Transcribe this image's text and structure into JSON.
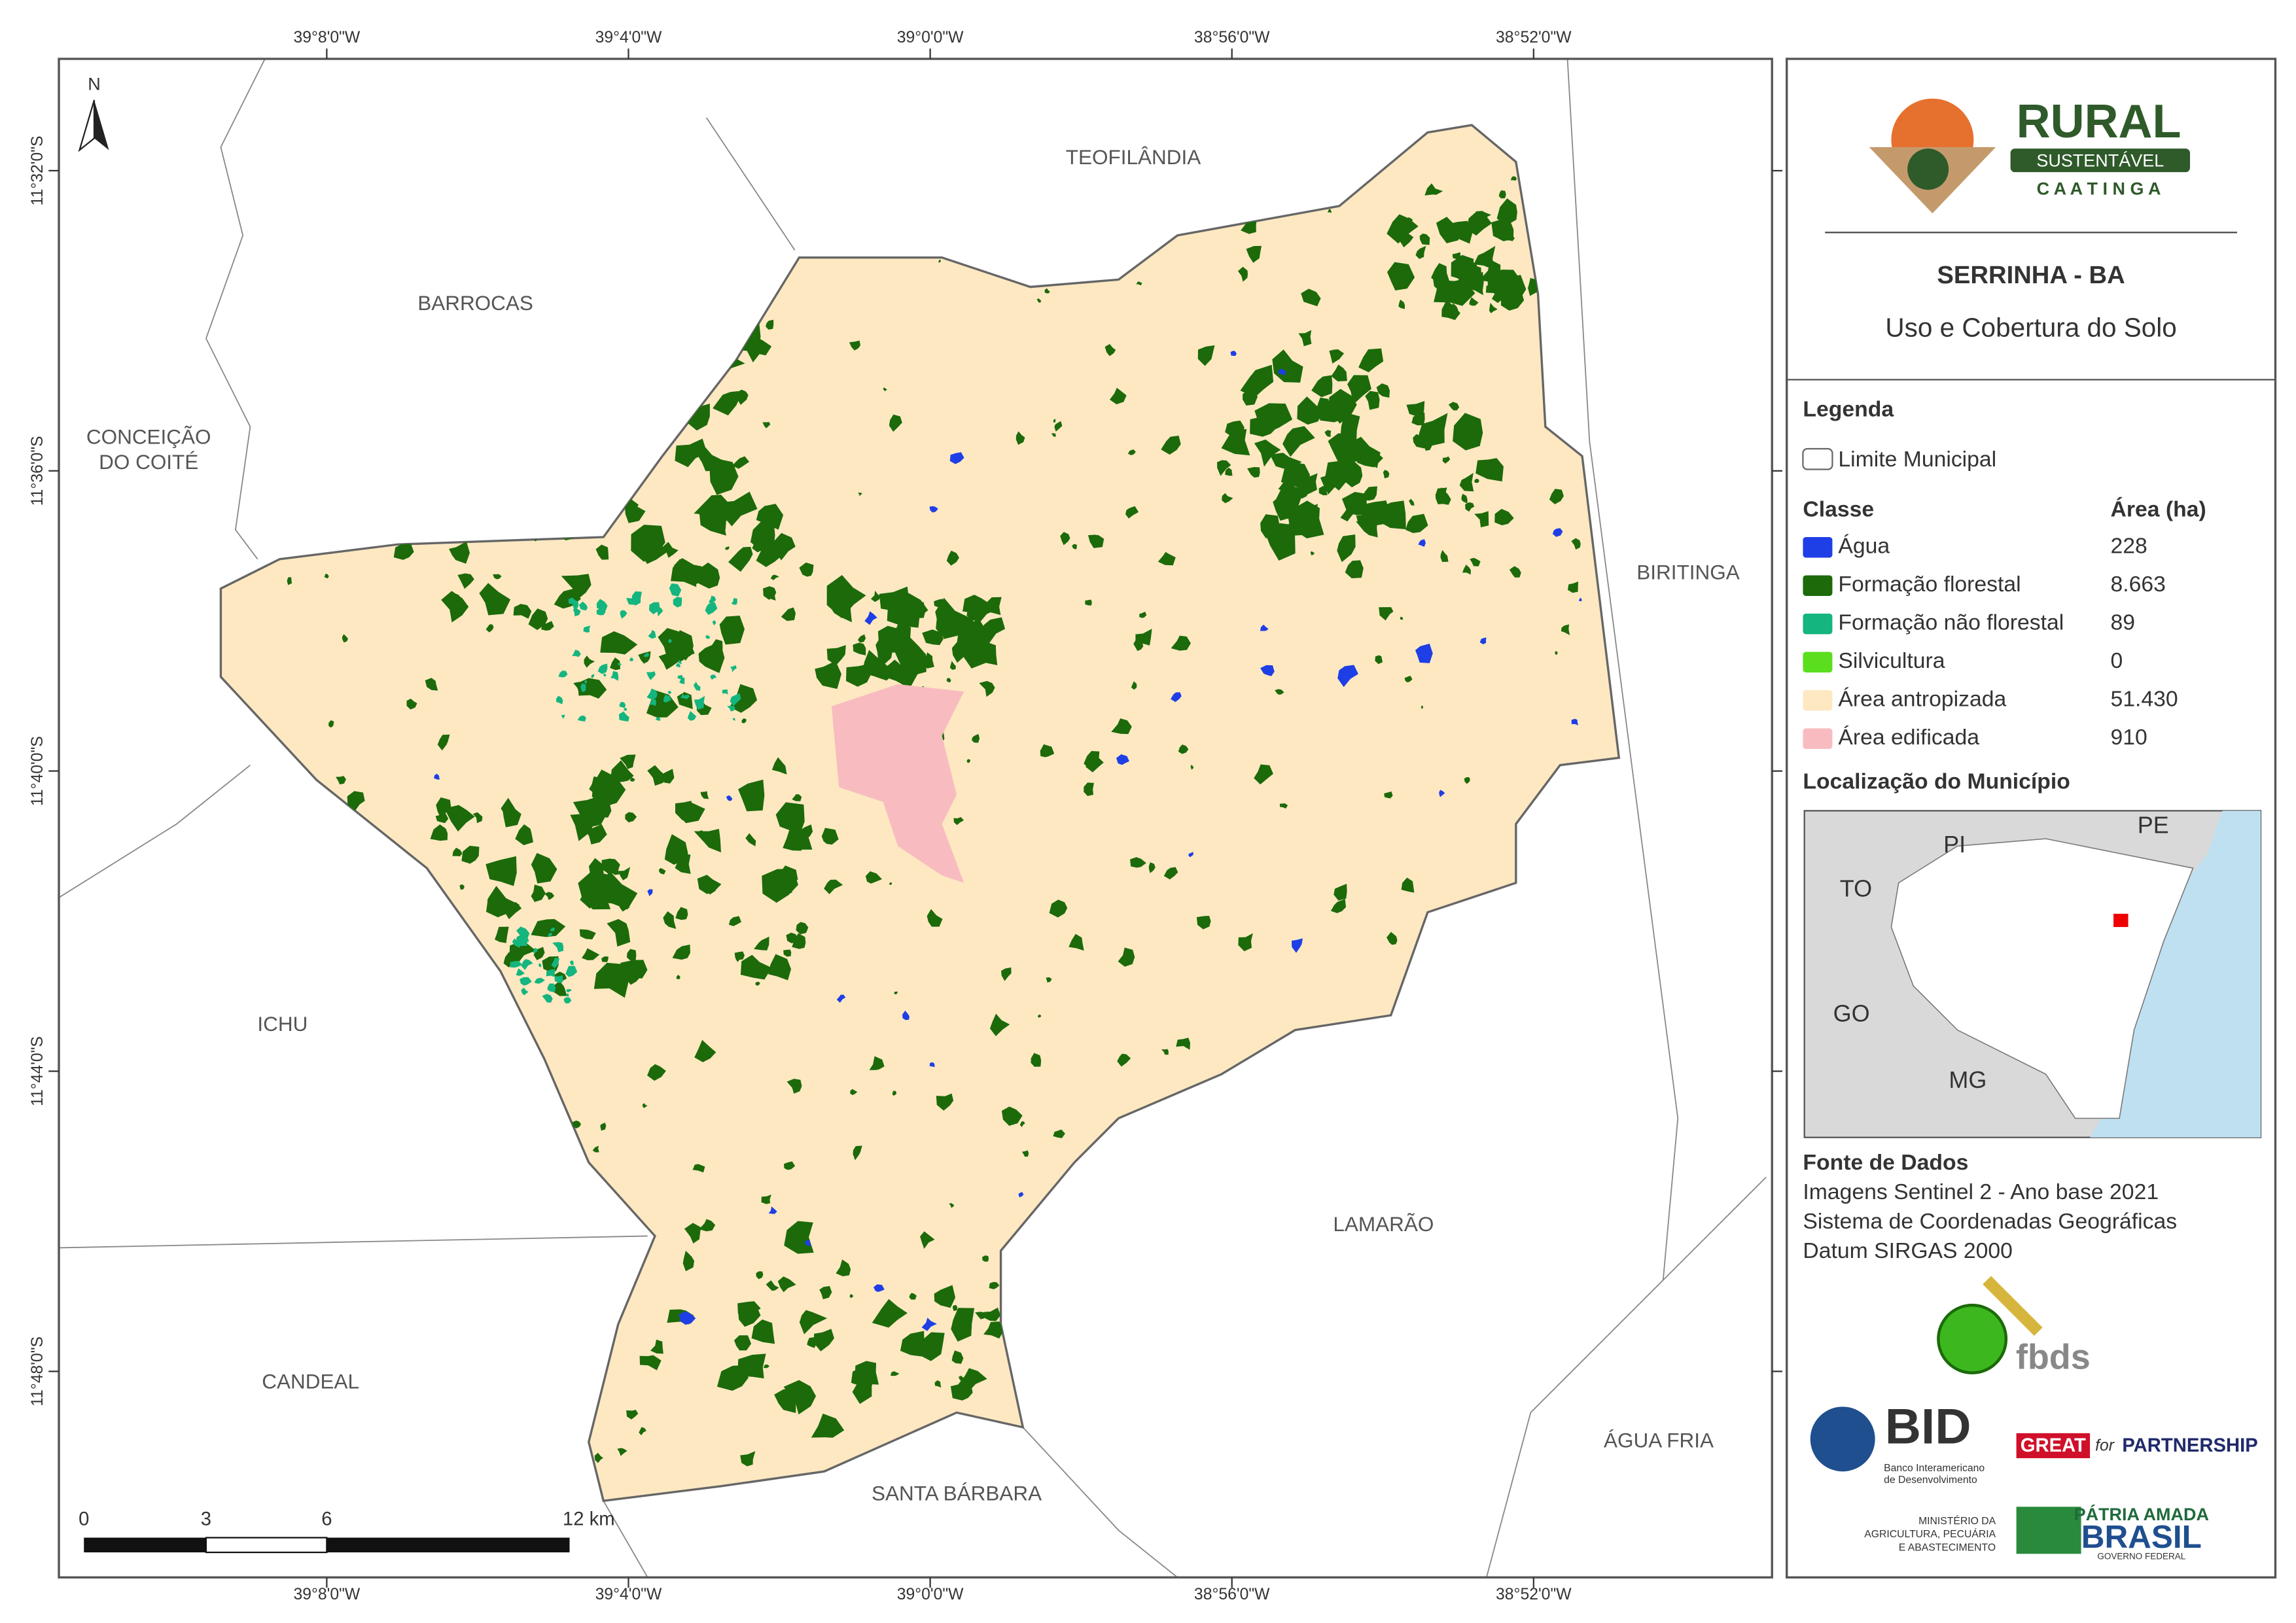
{
  "map": {
    "north": "N",
    "lon_labels": [
      "39°8'0\"W",
      "39°4'0\"W",
      "39°0'0\"W",
      "38°56'0\"W",
      "38°52'0\"W"
    ],
    "lat_labels": [
      "11°32'0\"S",
      "11°36'0\"S",
      "11°40'0\"S",
      "11°44'0\"S",
      "11°48'0\"S"
    ],
    "places": [
      "TEOFILÂNDIA",
      "BARROCAS",
      "CONCEIÇÃO",
      "DO COITÉ",
      "BIRITINGA",
      "ICHU",
      "LAMARÃO",
      "CANDEAL",
      "ÁGUA FRIA",
      "SANTA BÁRBARA"
    ],
    "scale_labels": [
      "0",
      "3",
      "6",
      "12 km"
    ]
  },
  "panel": {
    "logo": {
      "title": "RURAL",
      "subtitle": "SUSTENTÁVEL",
      "region": "C A A T I N G A"
    },
    "title": "SERRINHA - BA",
    "subtitle": "Uso e Cobertura do Solo",
    "legend_title": "Legenda",
    "boundary": "Limite Municipal",
    "class_header": "Classe",
    "area_header": "Área (ha)",
    "classes": [
      {
        "name": "Água",
        "area": "228",
        "color": "#1e3ee6"
      },
      {
        "name": "Formação florestal",
        "area": "8.663",
        "color": "#1c6a0a"
      },
      {
        "name": "Formação não florestal",
        "area": "89",
        "color": "#14b57e"
      },
      {
        "name": "Silvicultura",
        "area": "0",
        "color": "#5ade1e"
      },
      {
        "name": "Área antropizada",
        "area": "51.430",
        "color": "#fde8c2"
      },
      {
        "name": "Área edificada",
        "area": "910",
        "color": "#f8bcc0"
      }
    ],
    "location_title": "Localização do Município",
    "states": [
      "PI",
      "PE",
      "TO",
      "GO",
      "MG"
    ],
    "sources_title": "Fonte de Dados",
    "sources": [
      "Imagens Sentinel 2 - Ano base 2021",
      "Sistema de Coordenadas Geográficas",
      "Datum SIRGAS 2000"
    ],
    "logos": {
      "fbds": "fbds",
      "bid": "BID",
      "bid_name": [
        "Banco Interamericano",
        "de Desenvolvimento"
      ],
      "great": "GREAT",
      "for": "for",
      "partnership": "PARTNERSHIP",
      "ministry": [
        "MINISTÉRIO DA",
        "AGRICULTURA, PECUÁRIA",
        "E ABASTECIMENTO"
      ],
      "patria": "PÁTRIA AMADA",
      "brasil": "BRASIL",
      "gov": "GOVERNO FEDERAL"
    }
  }
}
